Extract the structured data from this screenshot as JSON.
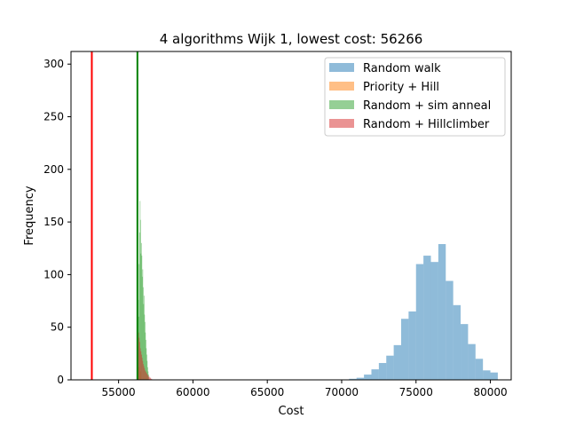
{
  "chart_data": {
    "type": "bar",
    "title": "4 algorithms Wijk 1, lowest cost: 56266",
    "xlabel": "Cost",
    "ylabel": "Frequency",
    "xlim": [
      51800,
      81400
    ],
    "ylim": [
      0,
      312
    ],
    "xticks": [
      55000,
      60000,
      65000,
      70000,
      75000,
      80000
    ],
    "yticks": [
      0,
      50,
      100,
      150,
      200,
      250,
      300
    ],
    "legend_position": "top-right",
    "vlines": [
      {
        "x": 53200,
        "color": "#ff0000"
      },
      {
        "x": 56266,
        "color": "#008000"
      }
    ],
    "series": [
      {
        "name": "Random walk",
        "color": "#1f77b4",
        "bin_width": 500,
        "bins": [
          {
            "x": 70500,
            "y": 1
          },
          {
            "x": 71000,
            "y": 2
          },
          {
            "x": 71500,
            "y": 5
          },
          {
            "x": 72000,
            "y": 10
          },
          {
            "x": 72500,
            "y": 16
          },
          {
            "x": 73000,
            "y": 23
          },
          {
            "x": 73500,
            "y": 33
          },
          {
            "x": 74000,
            "y": 58
          },
          {
            "x": 74500,
            "y": 65
          },
          {
            "x": 75000,
            "y": 110
          },
          {
            "x": 75500,
            "y": 118
          },
          {
            "x": 76000,
            "y": 112
          },
          {
            "x": 76500,
            "y": 129
          },
          {
            "x": 77000,
            "y": 94
          },
          {
            "x": 77500,
            "y": 71
          },
          {
            "x": 78000,
            "y": 53
          },
          {
            "x": 78500,
            "y": 34
          },
          {
            "x": 79000,
            "y": 20
          },
          {
            "x": 79500,
            "y": 9
          },
          {
            "x": 80000,
            "y": 7
          }
        ]
      },
      {
        "name": "Priority + Hill",
        "color": "#ff7f0e",
        "bin_width": 30,
        "bins": [
          {
            "x": 56270,
            "y": 20
          },
          {
            "x": 56350,
            "y": 12
          },
          {
            "x": 56450,
            "y": 8
          }
        ]
      },
      {
        "name": "Random + sim anneal",
        "color": "#2ca02c",
        "bin_width": 30,
        "bins": [
          {
            "x": 56270,
            "y": 40
          },
          {
            "x": 56300,
            "y": 76
          },
          {
            "x": 56330,
            "y": 60
          },
          {
            "x": 56360,
            "y": 110
          },
          {
            "x": 56390,
            "y": 140
          },
          {
            "x": 56420,
            "y": 170
          },
          {
            "x": 56450,
            "y": 152
          },
          {
            "x": 56480,
            "y": 120
          },
          {
            "x": 56510,
            "y": 130
          },
          {
            "x": 56540,
            "y": 118
          },
          {
            "x": 56570,
            "y": 98
          },
          {
            "x": 56600,
            "y": 105
          },
          {
            "x": 56630,
            "y": 88
          },
          {
            "x": 56660,
            "y": 72
          },
          {
            "x": 56690,
            "y": 80
          },
          {
            "x": 56720,
            "y": 62
          },
          {
            "x": 56750,
            "y": 55
          },
          {
            "x": 56780,
            "y": 45
          },
          {
            "x": 56810,
            "y": 38
          },
          {
            "x": 56840,
            "y": 30
          },
          {
            "x": 56870,
            "y": 24
          },
          {
            "x": 56900,
            "y": 18
          },
          {
            "x": 56930,
            "y": 12
          },
          {
            "x": 56960,
            "y": 8
          },
          {
            "x": 56990,
            "y": 5
          }
        ]
      },
      {
        "name": "Random + Hillclimber",
        "color": "#d62728",
        "bin_width": 40,
        "bins": [
          {
            "x": 56280,
            "y": 32
          },
          {
            "x": 56320,
            "y": 45
          },
          {
            "x": 56360,
            "y": 40
          },
          {
            "x": 56400,
            "y": 36
          },
          {
            "x": 56440,
            "y": 30
          },
          {
            "x": 56480,
            "y": 27
          },
          {
            "x": 56520,
            "y": 24
          },
          {
            "x": 56560,
            "y": 21
          },
          {
            "x": 56600,
            "y": 18
          },
          {
            "x": 56640,
            "y": 15
          },
          {
            "x": 56680,
            "y": 13
          },
          {
            "x": 56720,
            "y": 11
          },
          {
            "x": 56760,
            "y": 9
          },
          {
            "x": 56800,
            "y": 8
          },
          {
            "x": 56840,
            "y": 7
          },
          {
            "x": 56880,
            "y": 6
          },
          {
            "x": 56920,
            "y": 5
          },
          {
            "x": 56960,
            "y": 4
          },
          {
            "x": 57000,
            "y": 3
          },
          {
            "x": 57040,
            "y": 3
          },
          {
            "x": 57080,
            "y": 2
          },
          {
            "x": 57120,
            "y": 2
          },
          {
            "x": 57160,
            "y": 1
          },
          {
            "x": 57200,
            "y": 1
          }
        ]
      }
    ]
  }
}
